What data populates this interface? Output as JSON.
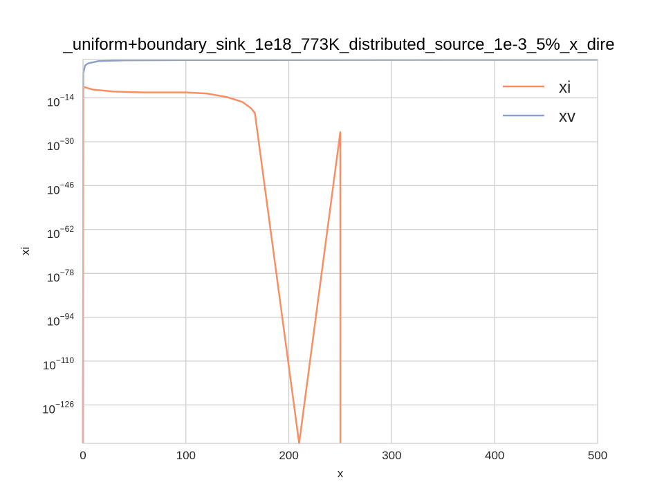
{
  "chart_data": {
    "type": "line",
    "title": "_uniform+boundary_sink_1e18_773K_distributed_source_1e-3_5%_x_dire",
    "xlabel": "x",
    "ylabel": "xi",
    "xlim": [
      0,
      500
    ],
    "ylim_log10": [
      -140,
      0
    ],
    "yscale": "log",
    "grid": true,
    "legend_position": "top-right",
    "x_ticks": [
      "0",
      "100",
      "200",
      "300",
      "400",
      "500"
    ],
    "y_ticks": [
      {
        "base": "10",
        "exp": "−14",
        "log10": -14
      },
      {
        "base": "10",
        "exp": "−30",
        "log10": -30
      },
      {
        "base": "10",
        "exp": "−46",
        "log10": -46
      },
      {
        "base": "10",
        "exp": "−62",
        "log10": -62
      },
      {
        "base": "10",
        "exp": "−78",
        "log10": -78
      },
      {
        "base": "10",
        "exp": "−94",
        "log10": -94
      },
      {
        "base": "10",
        "exp": "−110",
        "log10": -110
      },
      {
        "base": "10",
        "exp": "−126",
        "log10": -126
      }
    ],
    "series": [
      {
        "name": "xi",
        "color": "#fc8d62",
        "points_log10": [
          [
            0,
            -140
          ],
          [
            0.3,
            -10
          ],
          [
            10,
            -11
          ],
          [
            30,
            -11.7
          ],
          [
            60,
            -12
          ],
          [
            100,
            -12
          ],
          [
            120,
            -12.4
          ],
          [
            140,
            -13.7
          ],
          [
            155,
            -15.5
          ],
          [
            163,
            -17.7
          ],
          [
            167,
            -19.5
          ],
          [
            210,
            -140
          ],
          [
            250,
            -26.5
          ],
          [
            250.1,
            -140
          ]
        ]
      },
      {
        "name": "xv",
        "color": "#8da0cb",
        "points_log10": [
          [
            0,
            -140
          ],
          [
            0.3,
            -5
          ],
          [
            2,
            -2.2
          ],
          [
            5,
            -1.4
          ],
          [
            15,
            -0.6
          ],
          [
            40,
            -0.3
          ],
          [
            100,
            -0.2
          ],
          [
            500,
            -0.1
          ]
        ]
      }
    ]
  }
}
